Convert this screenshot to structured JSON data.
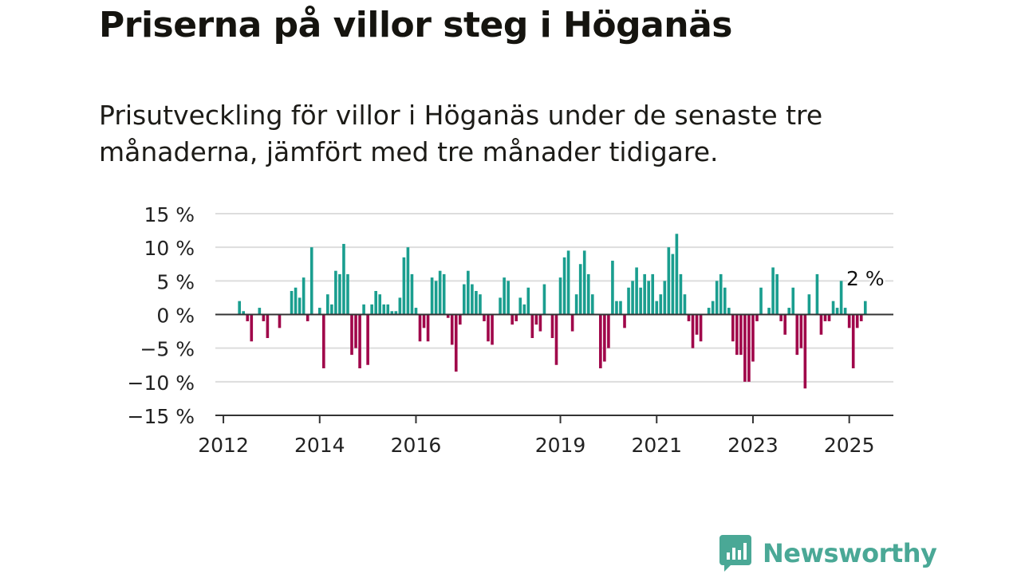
{
  "header": {
    "title": "Priserna på villor steg i Höganäs",
    "subtitle": "Prisutveckling för villor i Höganäs under de senaste tre månaderna, jämfört med tre månader tidigare."
  },
  "colors": {
    "positive": "#1a9e8f",
    "negative": "#a0064a",
    "grid": "#dddddd",
    "axis": "#333333",
    "brand": "#4aa896"
  },
  "brand": {
    "name": "Newsworthy",
    "icon": "chart-bubble-icon"
  },
  "chart_data": {
    "type": "bar",
    "ylim": [
      -15,
      15
    ],
    "y_ticks": [
      15,
      10,
      5,
      0,
      -5,
      -10,
      -15
    ],
    "y_tick_labels": [
      "15 %",
      "10 %",
      "5 %",
      "0 %",
      "−5 %",
      "−10 %",
      "−15 %"
    ],
    "x_range": [
      "2011-11",
      "2025-12"
    ],
    "x_ticks": [
      {
        "label": "2012",
        "date": "2012-01"
      },
      {
        "label": "2014",
        "date": "2014-01"
      },
      {
        "label": "2016",
        "date": "2016-01"
      },
      {
        "label": "2019",
        "date": "2019-01"
      },
      {
        "label": "2021",
        "date": "2021-01"
      },
      {
        "label": "2023",
        "date": "2023-01"
      },
      {
        "label": "2025",
        "date": "2025-01"
      }
    ],
    "grid": true,
    "annotation": {
      "text": "2 %",
      "date": "2025-05"
    },
    "start_month": "2012-05",
    "values": [
      2,
      0.5,
      -1,
      -4,
      0,
      1,
      -1,
      -3.5,
      0,
      0,
      -2,
      0,
      0,
      3.5,
      4,
      2.5,
      5.5,
      -1,
      10,
      0,
      1,
      -8,
      3,
      1.5,
      6.5,
      6,
      10.5,
      6,
      -6,
      -5,
      -8,
      1.5,
      -7.5,
      1.5,
      3.5,
      3,
      1.5,
      1.5,
      0.5,
      0.5,
      2.5,
      8.5,
      10,
      6,
      1,
      -4,
      -2,
      -4,
      5.5,
      5,
      6.5,
      6,
      -0.5,
      -4.5,
      -8.5,
      -1.5,
      4.5,
      6.5,
      4.5,
      3.5,
      3,
      -1,
      -4,
      -4.5,
      0,
      2.5,
      5.5,
      5,
      -1.5,
      -1,
      2.5,
      1.5,
      4,
      -3.5,
      -1.5,
      -2.5,
      4.5,
      0,
      -3.5,
      -7.5,
      5.5,
      8.5,
      9.5,
      -2.5,
      3,
      7.5,
      9.5,
      6,
      3,
      0,
      -8,
      -7,
      -5,
      8,
      2,
      2,
      -2,
      4,
      5,
      7,
      4,
      6,
      5,
      6,
      2,
      3,
      5,
      10,
      9,
      12,
      6,
      3,
      -1,
      -5,
      -3,
      -4,
      0,
      1,
      2,
      5,
      6,
      4,
      1,
      -4,
      -6,
      -6,
      -10,
      -10,
      -7,
      -1,
      4,
      0,
      1,
      7,
      6,
      -1,
      -3,
      1,
      4,
      -6,
      -5,
      -11,
      3,
      0,
      6,
      -3,
      -1,
      -1,
      2,
      1,
      5,
      1,
      -2,
      -8,
      -2,
      -1,
      2
    ]
  }
}
